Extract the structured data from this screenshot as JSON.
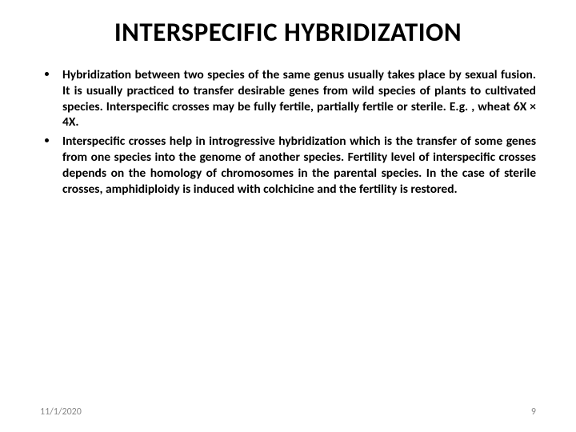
{
  "slide": {
    "title": "INTERSPECIFIC HYBRIDIZATION",
    "title_fontsize": 33,
    "title_color": "#000000",
    "background_color": "#ffffff",
    "bullets": [
      {
        "text": "Hybridization between two species of the same genus usually takes place by sexual fusion. It is usually practiced to transfer desirable genes from wild species of plants to cultivated species. Interspecific crosses may be fully fertile, partially fertile or sterile. E.g. , wheat 6X × 4X."
      },
      {
        "text": "Interspecific crosses help in introgressive hybridization which is the transfer of some genes from one species into the genome of another species. Fertility level of interspecific crosses depends on the homology of chromosomes in the parental species. In the case of sterile crosses, amphidiploidy is induced with colchicine and the fertility is restored."
      }
    ],
    "bullet_fontsize": 15.5,
    "bullet_color": "#000000",
    "bullet_weight": "bold",
    "footer": {
      "date": "11/1/2020",
      "page_number": "9",
      "color": "#888888",
      "fontsize": 12
    }
  }
}
